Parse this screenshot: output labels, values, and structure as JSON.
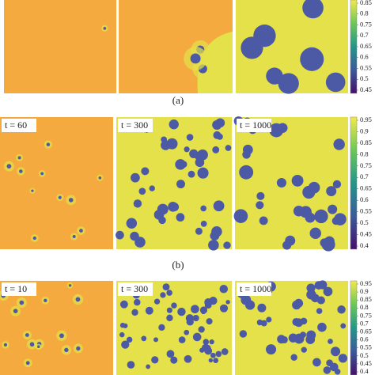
{
  "figure": {
    "rows": [
      {
        "caption": "(a)",
        "colorbar_ticks": [
          0.85,
          0.8,
          0.75,
          0.7,
          0.65,
          0.6,
          0.55,
          0.5,
          0.45
        ]
      },
      {
        "caption": "(b)",
        "panel_labels": [
          "t = 60",
          "t = 300",
          "t = 1000"
        ],
        "colorbar_ticks": [
          0.95,
          0.9,
          0.85,
          0.8,
          0.75,
          0.7,
          0.65,
          0.6,
          0.55,
          0.5,
          0.45,
          0.4
        ]
      },
      {
        "panel_labels": [
          "t = 10",
          "t = 300",
          "t = 1000"
        ],
        "colorbar_ticks": [
          0.95,
          0.9,
          0.85,
          0.8,
          0.75,
          0.7,
          0.65,
          0.6,
          0.55,
          0.5,
          0.45,
          0.4
        ]
      }
    ]
  }
}
